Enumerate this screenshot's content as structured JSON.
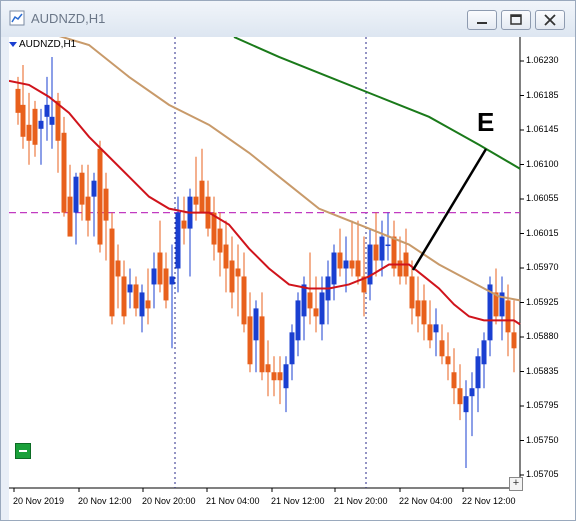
{
  "window": {
    "title": "AUDNZD,H1"
  },
  "window_buttons": [
    "minimize",
    "restore",
    "close"
  ],
  "chart": {
    "symbol_label": "AUDNZD,H1",
    "annotation_letter": "E",
    "price_labels": [
      "1.06230",
      "1.06185",
      "1.06145",
      "1.06100",
      "1.06055",
      "1.06015",
      "1.05970",
      "1.05925",
      "1.05880",
      "1.05835",
      "1.05795",
      "1.05750",
      "1.05705"
    ],
    "time_labels": [
      "20 Nov 2019",
      "20 Nov 12:00",
      "20 Nov 20:00",
      "21 Nov 04:00",
      "21 Nov 12:00",
      "21 Nov 20:00",
      "22 Nov 04:00",
      "22 Nov 12:00"
    ]
  },
  "chart_data": {
    "type": "candlestick",
    "symbol": "AUDNZD",
    "timeframe": "H1",
    "ylim": [
      1.05695,
      1.0626
    ],
    "horizontal_line": 1.0604,
    "vertical_separators": [
      "20 Nov 20:00",
      "21 Nov 20:00"
    ],
    "bull_color": "#1a3fd1",
    "bear_color": "#e8601c",
    "ma_colors": {
      "fast": "#d0141c",
      "slow": "#c89a6a",
      "long": "#1a7a1a"
    },
    "hline_color": "#c13bc1"
  }
}
